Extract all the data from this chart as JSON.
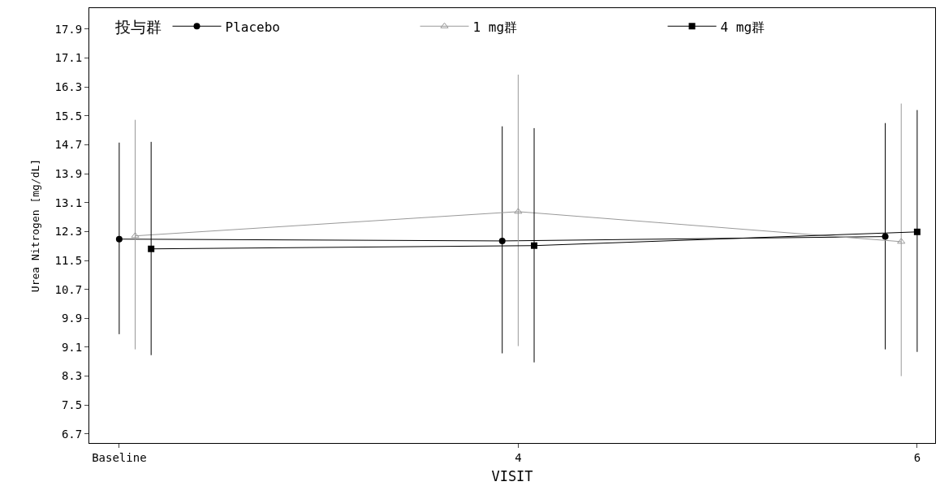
{
  "chart_data": {
    "type": "line",
    "xlabel": "VISIT",
    "ylabel": "Urea Nitrogen [mg/dL]",
    "legend_title": "投与群",
    "categories": [
      "Baseline",
      "4",
      "6"
    ],
    "ylim": [
      6.45,
      18.48
    ],
    "yticks": [
      6.7,
      7.5,
      8.3,
      9.1,
      9.9,
      10.7,
      11.5,
      12.3,
      13.1,
      13.9,
      14.7,
      15.5,
      16.3,
      17.1,
      17.9
    ],
    "series": [
      {
        "name": "Placebo",
        "color": "#000000",
        "marker": "circle",
        "values": [
          12.09,
          12.04,
          12.16
        ],
        "errors": [
          [
            9.46,
            14.76
          ],
          [
            8.93,
            15.21
          ],
          [
            9.04,
            15.3
          ]
        ]
      },
      {
        "name": "1 mg群",
        "color": "#999999",
        "marker": "triangle",
        "values": [
          12.18,
          12.85,
          12.02
        ],
        "errors": [
          [
            9.04,
            15.39
          ],
          [
            9.13,
            16.64
          ],
          [
            8.3,
            15.84
          ]
        ]
      },
      {
        "name": "4 mg群",
        "color": "#000000",
        "marker": "square",
        "values": [
          11.82,
          11.91,
          12.29
        ],
        "errors": [
          [
            8.88,
            14.78
          ],
          [
            8.68,
            15.16
          ],
          [
            8.97,
            15.66
          ]
        ]
      }
    ],
    "legend": "top"
  }
}
